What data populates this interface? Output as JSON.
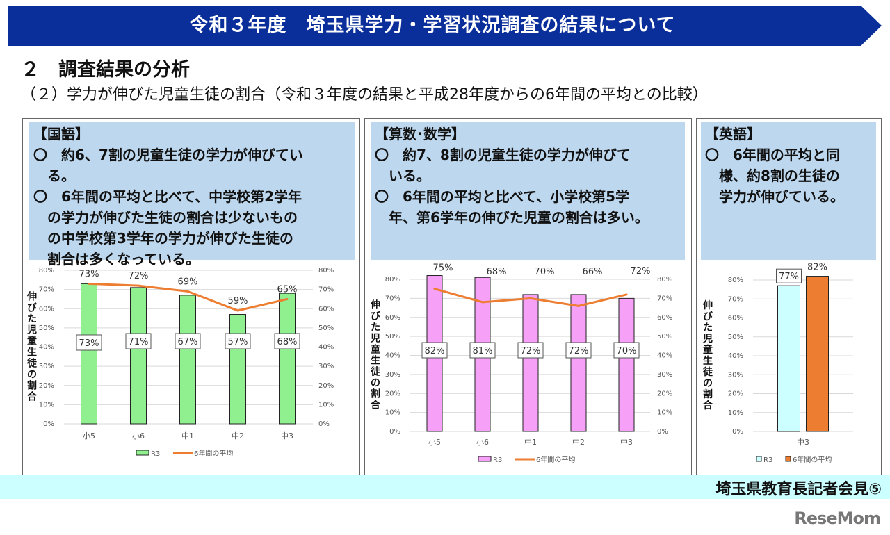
{
  "header": {
    "title": "令和３年度　埼玉県学力・学習状況調査の結果について",
    "banner_color": "#0b2f9a"
  },
  "section_title": "２　調査結果の分析",
  "subtitle": "（２）学力が伸びた児童生徒の割合（令和３年度の結果と平成28年度からの6年間の平均との比較）",
  "panels": [
    {
      "heading": "【国語】",
      "lines": [
        "〇　約6、7割の児童生徒の学力が伸びてい",
        "　る。",
        "〇　6年間の平均と比べて、中学校第2学年",
        "　の学力が伸びた生徒の割合は少ないもの",
        "　の中学校第3学年の学力が伸びた生徒の",
        "　割合は多くなっている。"
      ]
    },
    {
      "heading": "【算数･数学】",
      "lines": [
        "〇　約7、8割の児童生徒の学力が伸びて",
        "　いる。",
        "〇　6年間の平均と比べて、小学校第5学",
        "　年、第6学年の伸びた児童の割合は多い。"
      ]
    },
    {
      "heading": "【英語】",
      "lines": [
        "〇　6年間の平均と同",
        "　様、約8割の生徒の",
        "　学力が伸びている。"
      ]
    }
  ],
  "chart_data": [
    {
      "type": "bar+line",
      "subject": "国語",
      "ylabel": "伸びた児童生徒の割合",
      "ylim": [
        0,
        80
      ],
      "yticks": [
        "0%",
        "10%",
        "20%",
        "30%",
        "40%",
        "50%",
        "60%",
        "70%",
        "80%"
      ],
      "secondary_yticks": [
        "0%",
        "10%",
        "20%",
        "30%",
        "40%",
        "50%",
        "60%",
        "70%",
        "80%"
      ],
      "categories": [
        "小5",
        "小6",
        "中1",
        "中2",
        "中3"
      ],
      "series": [
        {
          "name": "R3",
          "kind": "bar",
          "color": "#90f090",
          "values": [
            73,
            71,
            67,
            57,
            68
          ],
          "labels": [
            "73%",
            "71%",
            "67%",
            "57%",
            "68%"
          ]
        },
        {
          "name": "6年間の平均",
          "kind": "line",
          "color": "#ed7d31",
          "values": [
            73,
            72,
            69,
            59,
            65
          ],
          "labels": [
            "73%",
            "72%",
            "69%",
            "59%",
            "65%"
          ]
        }
      ],
      "legend": "bottom",
      "grid": true
    },
    {
      "type": "bar+line",
      "subject": "算数・数学",
      "ylabel": "伸びた児童生徒の割合",
      "ylim": [
        0,
        80
      ],
      "yticks": [
        "0%",
        "10%",
        "20%",
        "30%",
        "40%",
        "50%",
        "60%",
        "70%",
        "80%"
      ],
      "secondary_yticks": [
        "0%",
        "10%",
        "20%",
        "30%",
        "40%",
        "50%",
        "60%",
        "70%",
        "80%"
      ],
      "categories": [
        "小5",
        "小6",
        "中1",
        "中2",
        "中3"
      ],
      "series": [
        {
          "name": "R3",
          "kind": "bar",
          "color": "#f7a0f7",
          "values": [
            82,
            81,
            72,
            72,
            70
          ],
          "labels": [
            "82%",
            "81%",
            "72%",
            "72%",
            "70%"
          ]
        },
        {
          "name": "6年間の平均",
          "kind": "line",
          "color": "#ed7d31",
          "values": [
            75,
            68,
            70,
            66,
            72
          ],
          "labels": [
            "75%",
            "68%",
            "70%",
            "66%",
            "72%"
          ]
        }
      ],
      "legend": "bottom",
      "grid": true
    },
    {
      "type": "bar",
      "subject": "英語",
      "ylabel": "伸びた児童生徒の割合",
      "ylim": [
        0,
        80
      ],
      "yticks": [
        "0%",
        "10%",
        "20%",
        "30%",
        "40%",
        "50%",
        "60%",
        "70%",
        "80%"
      ],
      "categories": [
        "中3"
      ],
      "series": [
        {
          "name": "R3",
          "kind": "bar",
          "color": "#ccffff",
          "values": [
            77
          ],
          "labels": [
            "77%"
          ]
        },
        {
          "name": "6年間の平均",
          "kind": "bar",
          "color": "#ed7d31",
          "values": [
            82
          ],
          "labels": [
            "82%"
          ]
        }
      ],
      "legend": "bottom",
      "grid": true
    }
  ],
  "footer": {
    "text": "埼玉県教育長記者会見⑤",
    "band_color": "#ccffff"
  },
  "logo": "ReseMom"
}
